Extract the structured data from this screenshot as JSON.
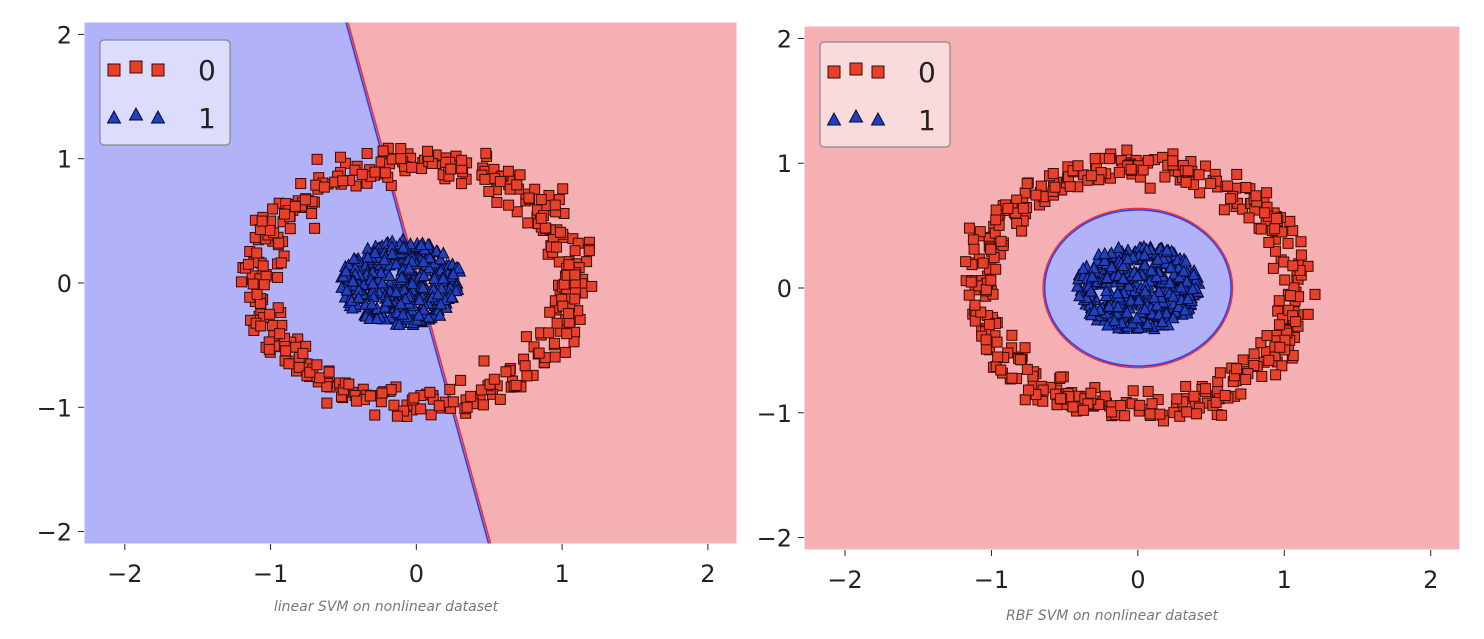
{
  "chart_data": [
    {
      "type": "scatter",
      "caption": "linear SVM on nonlinear dataset",
      "xlim": [
        -2.28,
        2.2
      ],
      "ylim": [
        -2.1,
        2.1
      ],
      "xticks": [
        -2,
        -1,
        0,
        1,
        2
      ],
      "yticks": [
        -2,
        -1,
        0,
        1,
        2
      ],
      "xtick_labels": [
        "−2",
        "−1",
        "0",
        "1",
        "2"
      ],
      "ytick_labels": [
        "−2",
        "−1",
        "0",
        "1",
        "2"
      ],
      "grid": false,
      "legend_position": "top-left",
      "legend": [
        {
          "label": "0",
          "marker": "square",
          "color": "#e8402a"
        },
        {
          "label": "1",
          "marker": "triangle",
          "color": "#2040c0"
        }
      ],
      "decision_boundary": {
        "kind": "line",
        "points": [
          [
            -0.48,
            2.1
          ],
          [
            0.5,
            -2.1
          ]
        ]
      },
      "regions": {
        "class_1_side": "left",
        "class_1_color": "#b2b2f8",
        "class_0_color": "#f4b0b2"
      },
      "series": [
        {
          "name": "0",
          "shape": "ring",
          "center": [
            0.0,
            0.0
          ],
          "radius_x": 1.08,
          "radius_y": 0.98,
          "noise": 0.12,
          "count": 420
        },
        {
          "name": "1",
          "shape": "blob",
          "center": [
            -0.1,
            0.0
          ],
          "radius_x": 0.42,
          "radius_y": 0.35,
          "count": 420
        }
      ]
    },
    {
      "type": "scatter",
      "caption": "RBF SVM on nonlinear dataset",
      "xlim": [
        -2.28,
        2.2
      ],
      "ylim": [
        -2.1,
        2.1
      ],
      "xticks": [
        -2,
        -1,
        0,
        1,
        2
      ],
      "yticks": [
        -2,
        -1,
        0,
        1,
        2
      ],
      "xtick_labels": [
        "−2",
        "−1",
        "0",
        "1",
        "2"
      ],
      "ytick_labels": [
        "−2",
        "−1",
        "0",
        "1",
        "2"
      ],
      "grid": false,
      "legend_position": "top-left",
      "legend": [
        {
          "label": "0",
          "marker": "square",
          "color": "#e8402a"
        },
        {
          "label": "1",
          "marker": "triangle",
          "color": "#2040c0"
        }
      ],
      "decision_boundary": {
        "kind": "ellipse",
        "center": [
          0.0,
          0.0
        ],
        "radius_x": 0.64,
        "radius_y": 0.63
      },
      "regions": {
        "class_1_side": "inside",
        "class_1_color": "#b2b2f8",
        "class_0_color": "#f4b0b2"
      },
      "series": [
        {
          "name": "0",
          "shape": "ring",
          "center": [
            0.0,
            0.0
          ],
          "radius_x": 1.08,
          "radius_y": 0.98,
          "noise": 0.12,
          "count": 420
        },
        {
          "name": "1",
          "shape": "blob",
          "center": [
            0.0,
            0.0
          ],
          "radius_x": 0.42,
          "radius_y": 0.35,
          "count": 420
        }
      ]
    }
  ]
}
